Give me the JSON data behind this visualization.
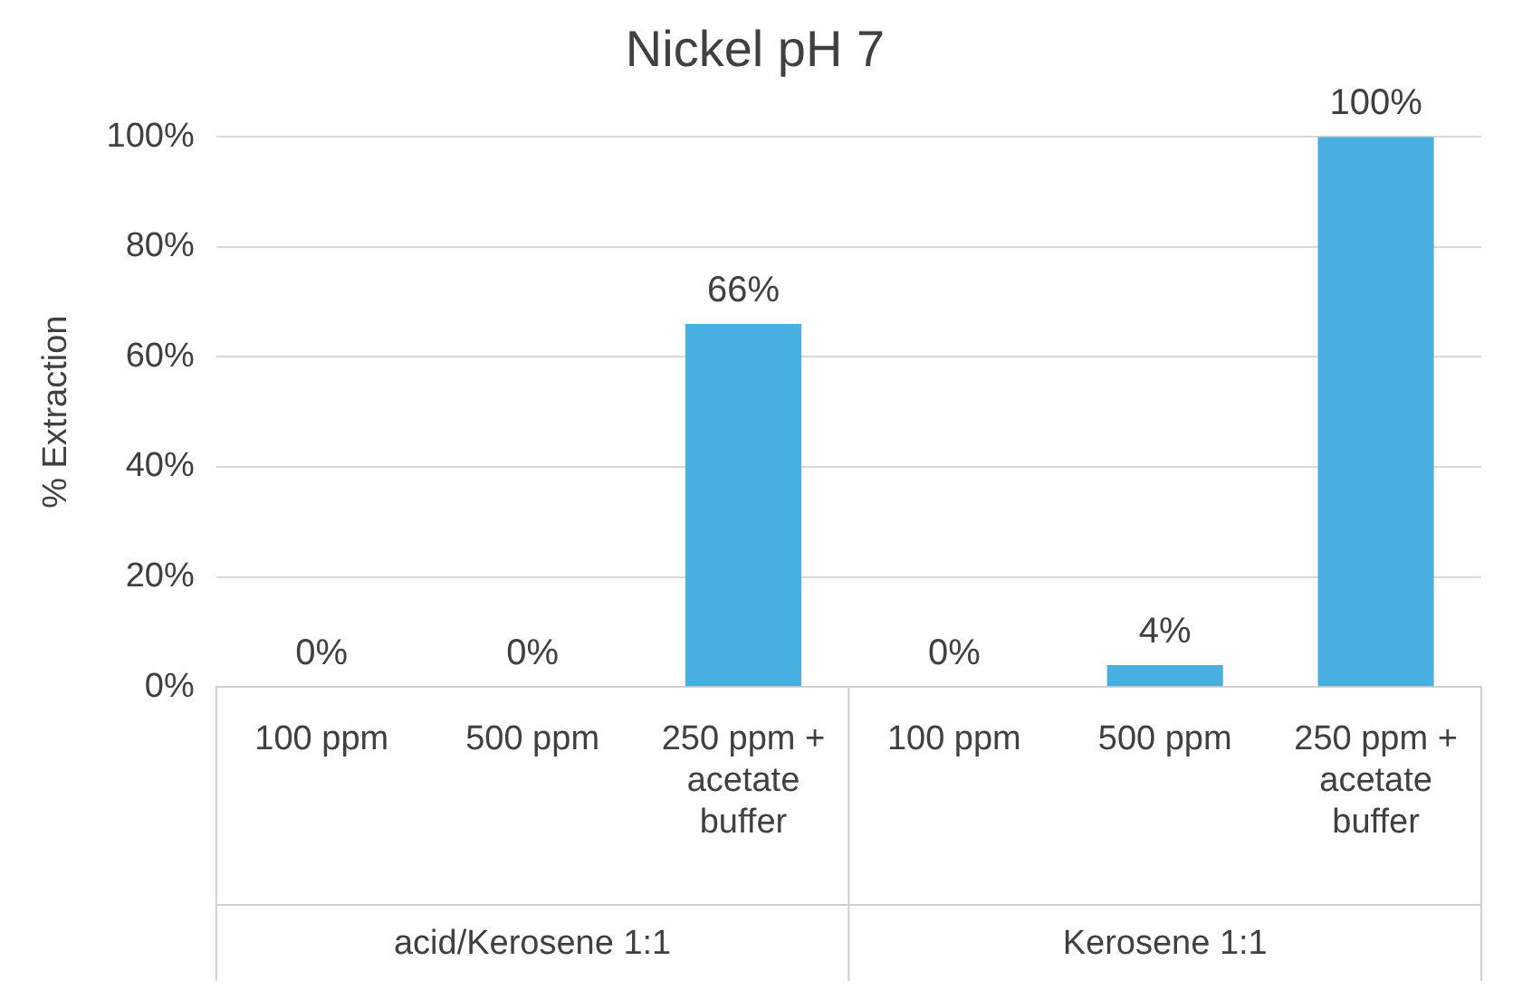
{
  "chart_data": {
    "type": "bar",
    "title": "Nickel pH 7",
    "ylabel": "% Extraction",
    "categories": [
      "100 ppm",
      "500 ppm",
      "250 ppm + acetate buffer",
      "100 ppm",
      "500 ppm",
      "250 ppm + acetate buffer"
    ],
    "values": [
      0,
      0,
      66,
      0,
      4,
      100
    ],
    "color": "#47b0e0",
    "value_labels": [
      "0%",
      "0%",
      "66%",
      "0%",
      "4%",
      "100%"
    ],
    "ylim": [
      0,
      100
    ],
    "yticks": [
      {
        "value": 0,
        "label": "0%"
      },
      {
        "value": 20,
        "label": "20%"
      },
      {
        "value": 40,
        "label": "40%"
      },
      {
        "value": 60,
        "label": "60%"
      },
      {
        "value": 80,
        "label": "80%"
      },
      {
        "value": 100,
        "label": "100%"
      }
    ],
    "grid": "y",
    "annotations": [
      "acid/Kerosene 1:1",
      "Kerosene 1:1"
    ]
  }
}
